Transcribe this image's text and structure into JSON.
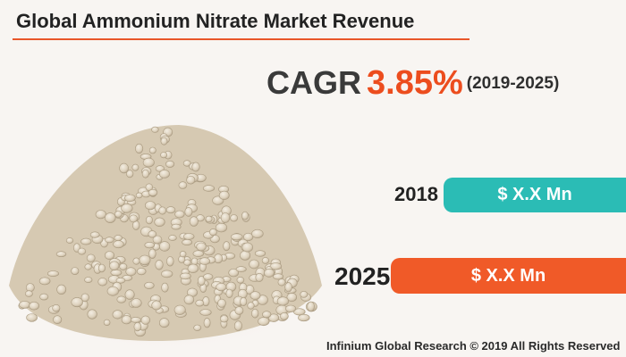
{
  "title": "Global Ammonium Nitrate Market Revenue",
  "cagr": {
    "label": "CAGR",
    "value": "3.85%",
    "period": "(2019-2025)"
  },
  "bars": [
    {
      "year": "2018",
      "value_text": "$ X.X Mn",
      "color": "#2bbcb5"
    },
    {
      "year": "2025",
      "value_text": "$ X.X Mn",
      "color": "#f05a28"
    }
  ],
  "footer": "Infinium Global Research © 2019 All Rights Reserved",
  "colors": {
    "accent": "#e8572a",
    "background": "#f8f5f2",
    "granule": "#e2d7c4"
  }
}
